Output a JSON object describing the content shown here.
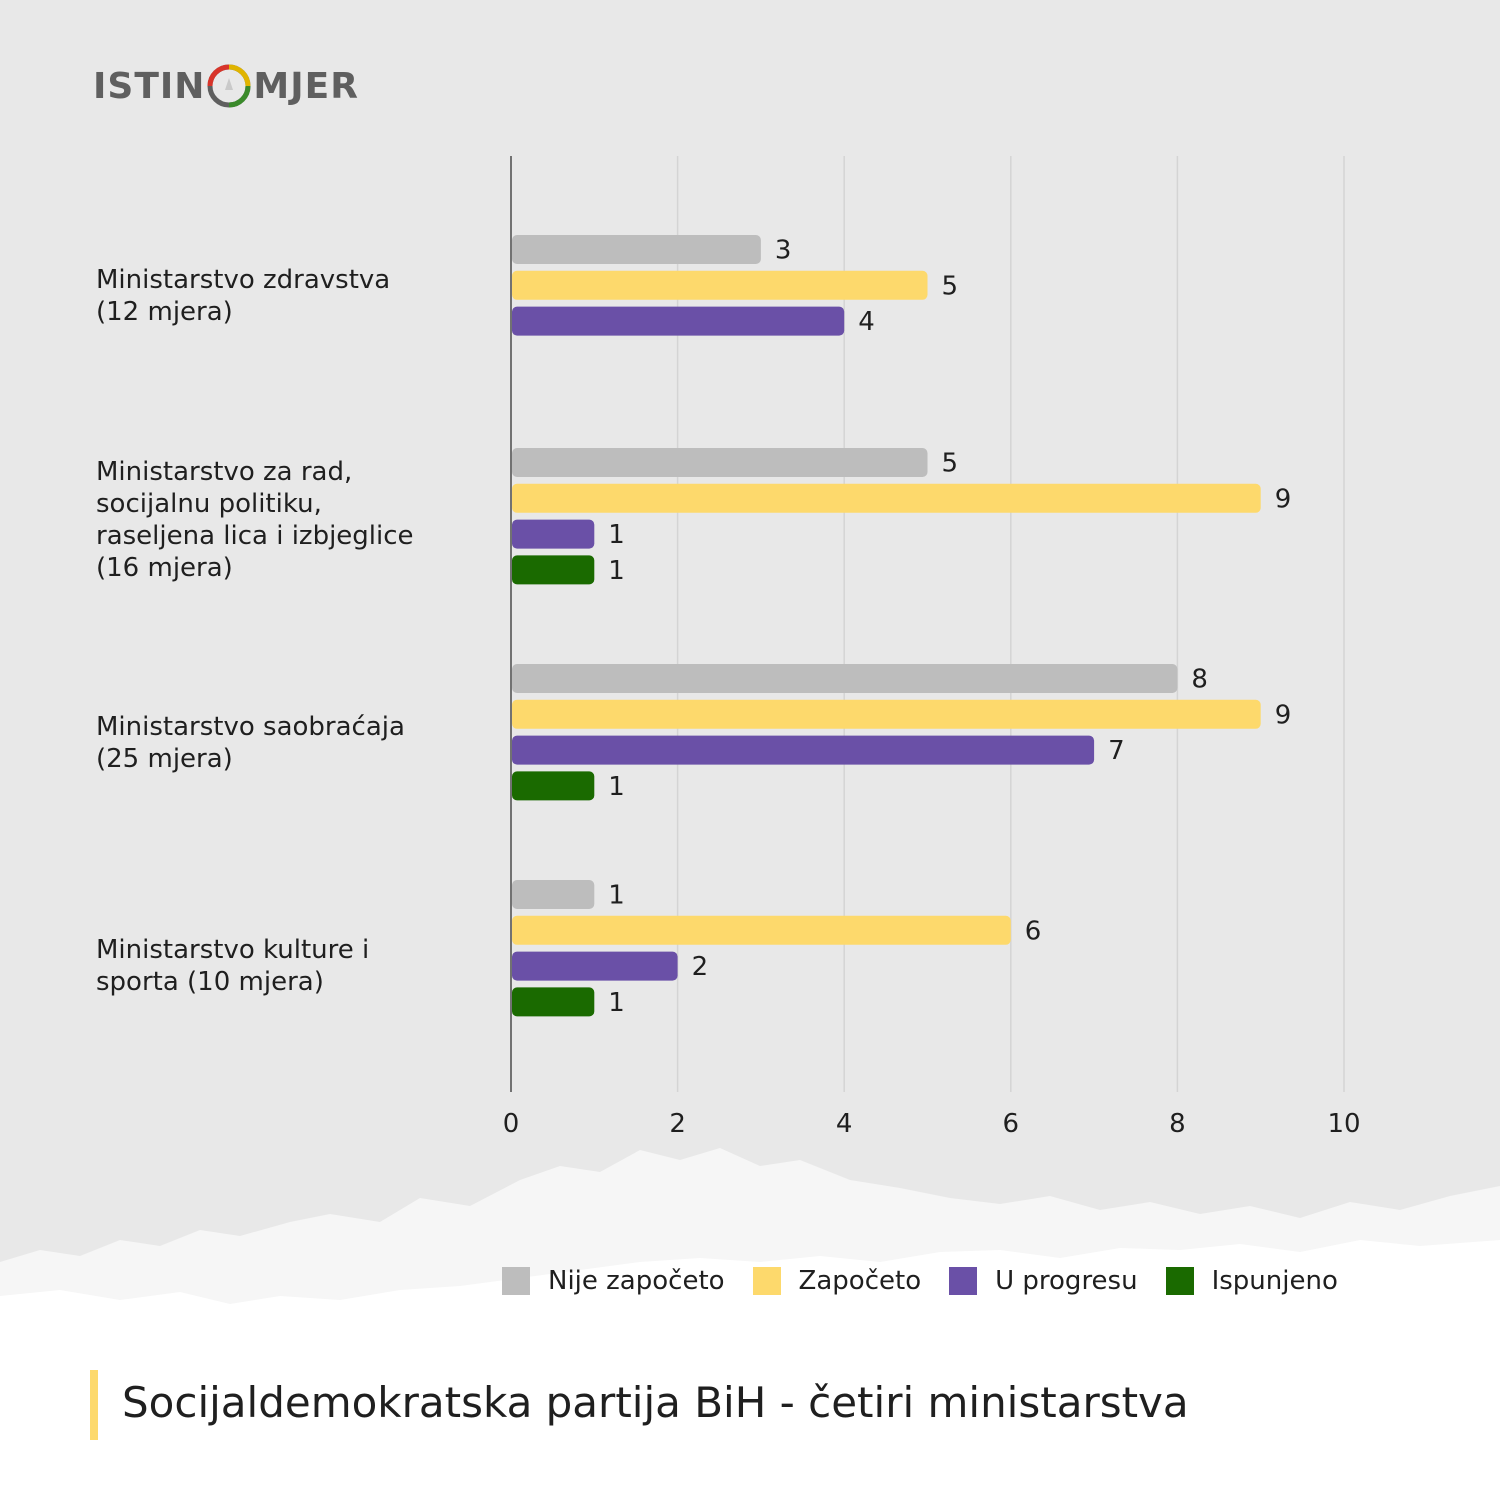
{
  "logo": {
    "text_left": "ISTIN",
    "text_right": "MJER"
  },
  "chart_data": {
    "type": "bar",
    "orientation": "horizontal",
    "title": "Socijaldemokratska partija BiH - četiri ministarstva",
    "categories": [
      "Ministarstvo zdravstva\n(12 mjera)",
      "Ministarstvo za rad,\nsocijalnu politiku,\nraseljena lica i izbjeglice\n(16 mjera)",
      "Ministarstvo saobraćaja\n(25 mjera)",
      "Ministarstvo kulture i\nsporta (10 mjera)"
    ],
    "series": [
      {
        "name": "Nije započeto",
        "color": "#bdbdbd",
        "values": [
          3,
          5,
          8,
          1
        ]
      },
      {
        "name": "Započeto",
        "color": "#fdd96c",
        "values": [
          5,
          9,
          9,
          6
        ]
      },
      {
        "name": "U progresu",
        "color": "#6a50a7",
        "values": [
          4,
          1,
          7,
          2
        ]
      },
      {
        "name": "Ispunjeno",
        "color": "#1a6a00",
        "values": [
          0,
          1,
          1,
          1
        ]
      }
    ],
    "xlim": [
      0,
      10
    ],
    "xticks": [
      "0",
      "2",
      "4",
      "6",
      "8",
      "10"
    ],
    "grid": true,
    "legend": "bottom"
  }
}
